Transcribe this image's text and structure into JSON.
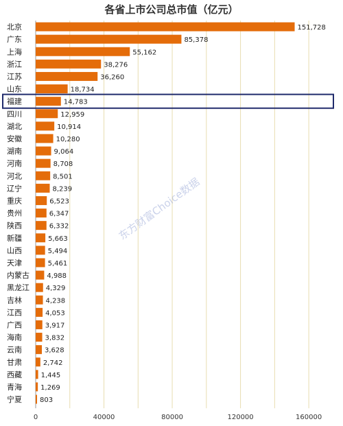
{
  "chart_data": {
    "type": "bar",
    "orientation": "horizontal",
    "title": "各省上市公司总市值（亿元）",
    "xlabel": "",
    "ylabel": "",
    "xlim": [
      0,
      170000
    ],
    "grid": true,
    "legend": "none",
    "bar_color": "#E46C0A",
    "highlight_color": "#1F2A6B",
    "highlight_category": "福建",
    "categories": [
      "北京",
      "广东",
      "上海",
      "浙江",
      "江苏",
      "山东",
      "福建",
      "四川",
      "湖北",
      "安徽",
      "湖南",
      "河南",
      "河北",
      "辽宁",
      "重庆",
      "贵州",
      "陕西",
      "新疆",
      "山西",
      "天津",
      "内蒙古",
      "黑龙江",
      "吉林",
      "江西",
      "广西",
      "海南",
      "云南",
      "甘肃",
      "西藏",
      "青海",
      "宁夏"
    ],
    "values": [
      151728,
      85378,
      55162,
      38276,
      36260,
      18734,
      14783,
      12959,
      10914,
      10280,
      9064,
      8708,
      8501,
      8239,
      6523,
      6347,
      6332,
      5663,
      5494,
      5461,
      4988,
      4329,
      4238,
      4053,
      3917,
      3832,
      3628,
      2742,
      1445,
      1269,
      803
    ],
    "value_labels": [
      "151,728",
      "85,378",
      "55,162",
      "38,276",
      "36,260",
      "18,734",
      "14,783",
      "12,959",
      "10,914",
      "10,280",
      "9,064",
      "8,708",
      "8,501",
      "8,239",
      "6,523",
      "6,347",
      "6,332",
      "5,663",
      "5,494",
      "5,461",
      "4,988",
      "4,329",
      "4,238",
      "4,053",
      "3,917",
      "3,832",
      "3,628",
      "2,742",
      "1,445",
      "1,269",
      "803"
    ],
    "x_ticks": [
      0,
      40000,
      80000,
      120000,
      160000
    ],
    "x_tick_labels": [
      "0",
      "40000",
      "80000",
      "120000",
      "160000"
    ],
    "watermark": "东方财富Choice数据"
  }
}
